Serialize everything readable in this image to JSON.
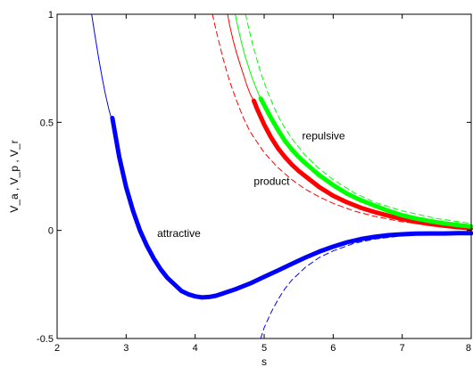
{
  "chart_data": {
    "type": "line",
    "title": "",
    "xlabel": "s",
    "ylabel": "V_a , V_p , V_r",
    "xlim": [
      2,
      8
    ],
    "ylim": [
      -0.5,
      1
    ],
    "x_ticks": [
      2,
      3,
      4,
      5,
      6,
      7,
      8
    ],
    "y_ticks": [
      -0.5,
      0,
      0.5,
      1
    ],
    "grid": false,
    "legend": "none",
    "annotations": [
      {
        "text": "attractive",
        "x": 3.45,
        "y": -0.03
      },
      {
        "text": "product",
        "x": 4.85,
        "y": 0.21
      },
      {
        "text": "repulsive",
        "x": 5.55,
        "y": 0.42
      }
    ],
    "series": [
      {
        "color": "#0000ff",
        "style": "thin",
        "x": [
          2.5,
          2.55,
          2.6,
          2.65,
          2.7,
          2.75,
          2.8
        ],
        "y": [
          1.0,
          0.9,
          0.8,
          0.71,
          0.63,
          0.56,
          0.5
        ]
      },
      {
        "color": "#0000ff",
        "style": "thick",
        "x": [
          2.8,
          2.9,
          3.0,
          3.1,
          3.2,
          3.3,
          3.4,
          3.5,
          3.6,
          3.7,
          3.8,
          3.9,
          4.0,
          4.1,
          4.2,
          4.3,
          4.4,
          4.6,
          4.8,
          5.0,
          5.2,
          5.4,
          5.6,
          5.8,
          6.0,
          6.2,
          6.4,
          6.6,
          6.8,
          7.0,
          7.2,
          7.4,
          7.6,
          7.8,
          8.0
        ],
        "y": [
          0.52,
          0.34,
          0.2,
          0.09,
          0.0,
          -0.07,
          -0.13,
          -0.18,
          -0.22,
          -0.25,
          -0.28,
          -0.295,
          -0.305,
          -0.31,
          -0.308,
          -0.302,
          -0.292,
          -0.27,
          -0.245,
          -0.215,
          -0.185,
          -0.155,
          -0.125,
          -0.098,
          -0.075,
          -0.055,
          -0.04,
          -0.03,
          -0.022,
          -0.018,
          -0.015,
          -0.014,
          -0.014,
          -0.013,
          -0.013
        ]
      },
      {
        "color": "#0000ff",
        "style": "dashed",
        "x": [
          4.95,
          5.0,
          5.1,
          5.2,
          5.3,
          5.4,
          5.6,
          5.8,
          6.0,
          6.3,
          6.6,
          7.0,
          7.4,
          8.0
        ],
        "y": [
          -0.5,
          -0.45,
          -0.38,
          -0.32,
          -0.27,
          -0.23,
          -0.17,
          -0.125,
          -0.095,
          -0.06,
          -0.04,
          -0.025,
          -0.016,
          -0.008
        ]
      },
      {
        "color": "#ff0000",
        "style": "thin",
        "x": [
          4.47,
          4.5,
          4.55,
          4.6,
          4.65,
          4.7,
          4.75,
          4.8,
          4.85
        ],
        "y": [
          1.0,
          0.95,
          0.88,
          0.82,
          0.77,
          0.72,
          0.67,
          0.63,
          0.6
        ]
      },
      {
        "color": "#ff0000",
        "style": "thick",
        "x": [
          4.85,
          4.9,
          5.0,
          5.1,
          5.2,
          5.3,
          5.4,
          5.5,
          5.6,
          5.8,
          6.0,
          6.2,
          6.4,
          6.6,
          6.8,
          7.0,
          7.2,
          7.4,
          7.6,
          7.8,
          8.0
        ],
        "y": [
          0.6,
          0.56,
          0.49,
          0.43,
          0.38,
          0.34,
          0.305,
          0.275,
          0.25,
          0.2,
          0.16,
          0.13,
          0.105,
          0.085,
          0.068,
          0.053,
          0.04,
          0.03,
          0.022,
          0.015,
          0.01
        ]
      },
      {
        "color": "#ff0000",
        "style": "dashed",
        "x": [
          4.25,
          4.3,
          4.4,
          4.5,
          4.6,
          4.7,
          4.8,
          5.0,
          5.2,
          5.4,
          5.6,
          5.8,
          6.0,
          6.3,
          6.6,
          7.0,
          7.5,
          8.0
        ],
        "y": [
          1.0,
          0.93,
          0.8,
          0.69,
          0.6,
          0.52,
          0.455,
          0.36,
          0.29,
          0.235,
          0.19,
          0.155,
          0.125,
          0.09,
          0.065,
          0.04,
          0.02,
          0.008
        ]
      },
      {
        "color": "#00ff00",
        "style": "thin",
        "x": [
          4.58,
          4.62,
          4.67,
          4.72,
          4.77,
          4.82,
          4.87,
          4.92,
          4.95
        ],
        "y": [
          1.0,
          0.94,
          0.87,
          0.81,
          0.76,
          0.71,
          0.67,
          0.63,
          0.61
        ]
      },
      {
        "color": "#00ff00",
        "style": "thick",
        "x": [
          4.95,
          5.0,
          5.1,
          5.2,
          5.3,
          5.4,
          5.5,
          5.6,
          5.8,
          6.0,
          6.2,
          6.4,
          6.6,
          6.8,
          7.0,
          7.2,
          7.4,
          7.6,
          7.8,
          8.0
        ],
        "y": [
          0.61,
          0.58,
          0.52,
          0.465,
          0.415,
          0.375,
          0.34,
          0.31,
          0.255,
          0.21,
          0.17,
          0.14,
          0.115,
          0.09,
          0.07,
          0.055,
          0.043,
          0.033,
          0.025,
          0.018
        ]
      },
      {
        "color": "#00ff00",
        "style": "dashed",
        "x": [
          4.73,
          4.78,
          4.85,
          4.95,
          5.05,
          5.15,
          5.25,
          5.4,
          5.6,
          5.8,
          6.0,
          6.3,
          6.6,
          7.0,
          7.5,
          8.0
        ],
        "y": [
          1.0,
          0.93,
          0.84,
          0.73,
          0.64,
          0.565,
          0.5,
          0.425,
          0.345,
          0.285,
          0.235,
          0.175,
          0.13,
          0.09,
          0.055,
          0.032
        ]
      }
    ]
  }
}
